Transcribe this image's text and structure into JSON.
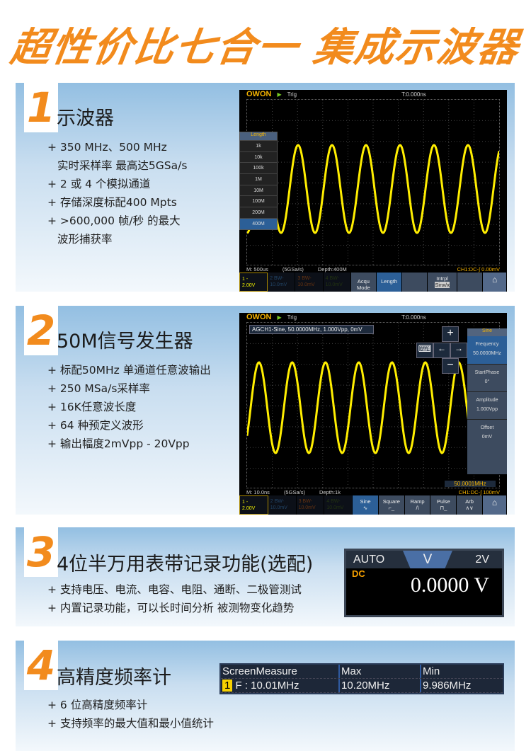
{
  "header": {
    "title": "超性价比七合一 集成示波器"
  },
  "colors": {
    "accent": "#f28b1d",
    "trace": "#ffee00",
    "panel_top": "#93bfe2"
  },
  "sections": [
    {
      "number": "1",
      "title": "示波器",
      "bullets": [
        "+ 350 MHz、500 MHz",
        "   实时采样率    最高达5GSa/s",
        "+ 2 或 4 个模拟通道",
        "+ 存储深度标配400 Mpts",
        "+ >600,000 帧/秒 的最大",
        "   波形捕获率"
      ]
    },
    {
      "number": "2",
      "title": "50M信号发生器",
      "bullets": [
        "+ 标配50MHz  单通道任意波输出",
        "+ 250 MSa/s采样率",
        "+ 16K任意波长度",
        "+ 64 种预定义波形",
        "+ 输出幅度2mVpp - 20Vpp"
      ]
    },
    {
      "number": "3",
      "title": "4位半万用表带记录功能(选配)",
      "bullets": [
        "+ 支持电压、电流、电容、电阻、通断、二极管测试",
        "+ 内置记录功能，可以长时间分析  被测物变化趋势"
      ]
    },
    {
      "number": "4",
      "title": "高精度频率计",
      "bullets": [
        "+ 6 位高精度频率计",
        "+ 支持频率的最大值和最小值统计"
      ]
    }
  ],
  "scope1": {
    "logo": "OWON",
    "trig": "Trig",
    "timepos": "T:0.000ns",
    "menu_title": "Length",
    "menu_items": [
      "1k",
      "10k",
      "100k",
      "1M",
      "10M",
      "100M",
      "200M",
      "400M"
    ],
    "menu_selected": "400M",
    "status": {
      "timebase": "M: 500us",
      "rate": "(5GSa/s)",
      "depth": "Depth:400M",
      "trigger": "CH1:DC-∫  0.00mV"
    },
    "softkeys": {
      "ch1": [
        "1 -",
        "2.00V"
      ],
      "ch2": [
        "2 BW-",
        "10.0mV"
      ],
      "ch3": [
        "3 BW-",
        "10.0mV"
      ],
      "ch4": [
        "4 BW-",
        "10.0mV"
      ],
      "k1": "Acqu Mode",
      "k2": "Length",
      "k3": "",
      "k4": "Intrpl",
      "k4v": "Sinx/x",
      "k5": ""
    }
  },
  "scope2": {
    "logo": "OWON",
    "trig": "Trig",
    "timepos": "T:0.000ns",
    "info": "AGCH1-Sine, 50.0000MHz, 1.000Vpp, 0mV",
    "freq_badge": "50.0001MHz",
    "side_menu": {
      "title": "Sine",
      "items": [
        {
          "label": "Frequency",
          "value": "50.0000MHz"
        },
        {
          "label": "StartPhase",
          "value": "0°"
        },
        {
          "label": "Amplitude",
          "value": "1.000Vpp"
        },
        {
          "label": "Offset",
          "value": "0mV"
        }
      ]
    },
    "status": {
      "timebase": "M: 10.0ns",
      "rate": "(5GSa/s)",
      "depth": "Depth:1k",
      "trigger": "CH1:DC-∫  100mV"
    },
    "softkeys": {
      "ch1": [
        "1 -",
        "2.00V"
      ],
      "ch2": [
        "2 BW-",
        "10.0mV"
      ],
      "ch3": [
        "3 BW-",
        "10.0mV"
      ],
      "ch4": [
        "4 BW-",
        "10.0mV"
      ],
      "waves": [
        "Sine",
        "Square",
        "Ramp",
        "Pulse",
        "Arb"
      ]
    }
  },
  "meter": {
    "mode": "AUTO",
    "unit": "V",
    "range": "2V",
    "coupling": "DC",
    "reading": "0.0000 V"
  },
  "measure": {
    "headers": [
      "ScreenMeasure",
      "Max",
      "Min"
    ],
    "row": {
      "channel": "1",
      "value": "F : 10.01MHz",
      "max": "10.20MHz",
      "min": "9.986MHz"
    }
  }
}
